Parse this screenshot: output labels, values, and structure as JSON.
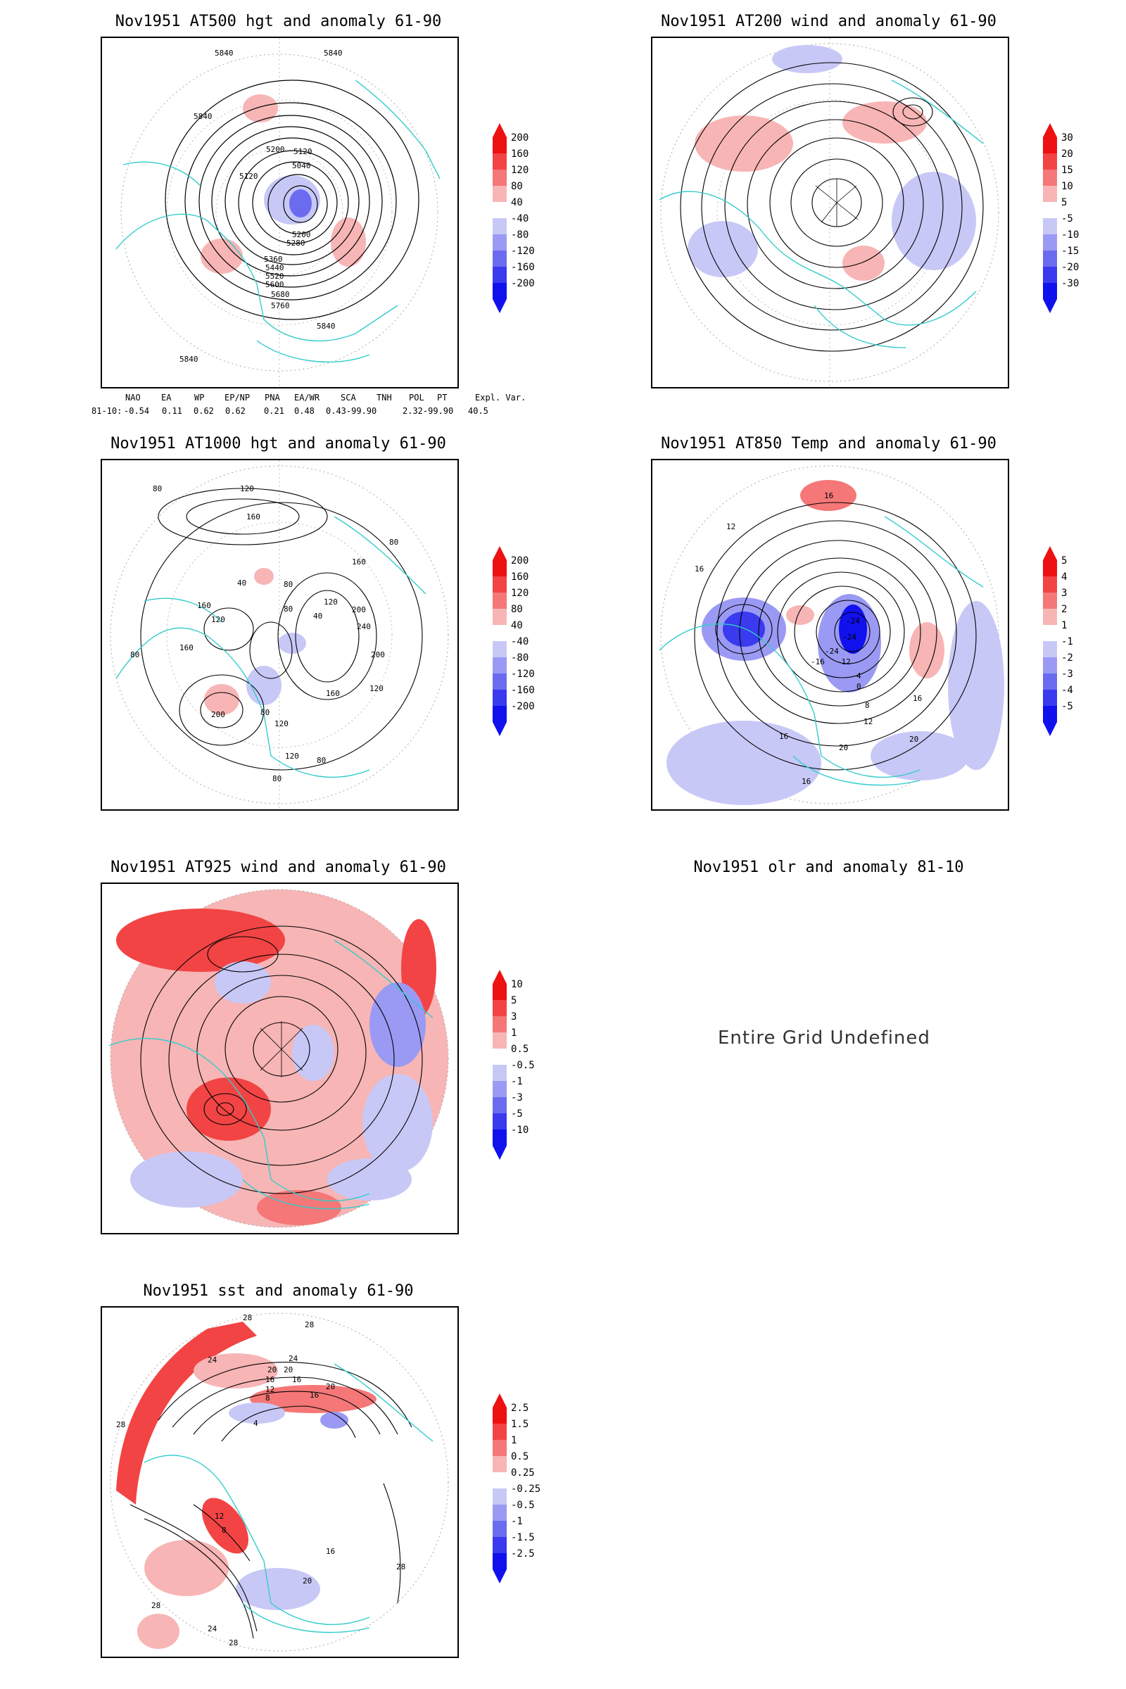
{
  "panels": {
    "p1": {
      "title": "Nov1951 AT500 hgt and anomaly 61-90",
      "contour_labels": [
        "5840",
        "5840",
        "5840",
        "5840",
        "5200",
        "5120",
        "5040",
        "5120",
        "5200",
        "5280",
        "5360",
        "5440",
        "5520",
        "5600",
        "5680",
        "5760",
        "5840"
      ],
      "colorbar": [
        "200",
        "160",
        "120",
        "80",
        "40",
        "-40",
        "-80",
        "-120",
        "-160",
        "-200"
      ]
    },
    "p2": {
      "title": "Nov1951 AT200 wind and anomaly 61-90",
      "colorbar": [
        "30",
        "20",
        "15",
        "10",
        "5",
        "-5",
        "-10",
        "-15",
        "-20",
        "-30"
      ]
    },
    "p3": {
      "title": "Nov1951 AT1000 hgt and anomaly 61-90",
      "contour_labels": [
        "80",
        "120",
        "160",
        "160",
        "80",
        "40",
        "80",
        "120",
        "200",
        "240",
        "200",
        "120",
        "160",
        "40",
        "80",
        "120",
        "160",
        "160",
        "80",
        "200",
        "80",
        "120",
        "120",
        "80",
        "80"
      ],
      "colorbar": [
        "200",
        "160",
        "120",
        "80",
        "40",
        "-40",
        "-80",
        "-120",
        "-160",
        "-200"
      ]
    },
    "p4": {
      "title": "Nov1951 AT850 Temp and anomaly 61-90",
      "contour_labels": [
        "16",
        "12",
        "16",
        "-24",
        "-24",
        "-24",
        "-16",
        "-12",
        "4",
        "0",
        "8",
        "16",
        "12",
        "16",
        "20",
        "16",
        "20"
      ],
      "colorbar": [
        "5",
        "4",
        "3",
        "2",
        "1",
        "-1",
        "-2",
        "-3",
        "-4",
        "-5"
      ]
    },
    "p5": {
      "title": "Nov1951 AT925 wind and anomaly 61-90",
      "colorbar": [
        "10",
        "5",
        "3",
        "1",
        "0.5",
        "-0.5",
        "-1",
        "-3",
        "-5",
        "-10"
      ]
    },
    "p6": {
      "title": "Nov1951 olr and anomaly 81-10",
      "message": "Entire Grid Undefined"
    },
    "p7": {
      "title": "Nov1951 sst and anomaly 61-90",
      "contour_labels": [
        "28",
        "28",
        "24",
        "24",
        "20",
        "20",
        "16",
        "16",
        "12",
        "8",
        "4",
        "28",
        "20",
        "16",
        "12",
        "8",
        "28",
        "24",
        "28",
        "20",
        "16",
        "28"
      ],
      "colorbar": [
        "2.5",
        "1.5",
        "1",
        "0.5",
        "0.25",
        "-0.25",
        "-0.5",
        "-1",
        "-1.5",
        "-2.5"
      ]
    }
  },
  "indices": {
    "header": [
      "NAO",
      "EA",
      "WP",
      "EP/NP",
      "PNA",
      "EA/WR",
      "SCA",
      "TNH",
      "POL",
      "PT",
      "Expl. Var."
    ],
    "row_label": "81-10:",
    "values": [
      "-0.54",
      "0.11",
      "0.62",
      "0.62",
      "0.21",
      "0.48",
      "0.43-99.90",
      "2.32-99.90",
      "40.5"
    ]
  },
  "colors": {
    "coast": "#33cccc",
    "warm_strong": "#ee1111",
    "warm_light": "#f7b5b5",
    "cool_light": "#c8c8f7",
    "cool_strong": "#1111ee",
    "contour": "#000000"
  }
}
